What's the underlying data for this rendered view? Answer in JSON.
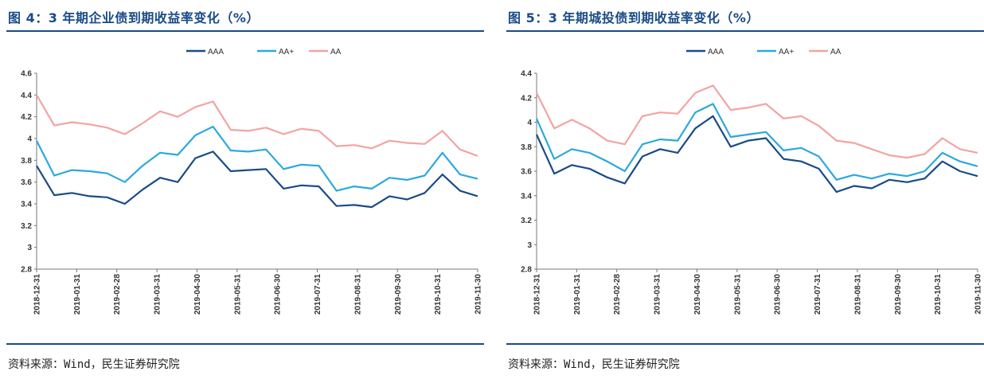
{
  "panels": [
    {
      "title": "图 4：3 年期企业债到期收益率变化（%）",
      "source": "资料来源：Wind，民生证券研究院",
      "chart_data": {
        "type": "line",
        "title": "",
        "xlabel": "",
        "ylabel": "",
        "ylim": [
          2.8,
          4.6
        ],
        "yticks": [
          "4.6",
          "4.4",
          "4.2",
          "4",
          "3.8",
          "3.6",
          "3.4",
          "3.2",
          "3",
          "2.8"
        ],
        "xticks": [
          "2018-12-31",
          "2019-01-31",
          "2019-02-28",
          "2019-03-31",
          "2019-04-30",
          "2019-05-31",
          "2019-06-30",
          "2019-07-31",
          "2019-08-31",
          "2019-09-30",
          "2019-10-31",
          "2019-11-30"
        ],
        "legend_position": "top-center",
        "grid": false,
        "series": [
          {
            "name": "AAA",
            "color": "#1a4b87",
            "values": [
              3.75,
              3.48,
              3.5,
              3.47,
              3.46,
              3.4,
              3.53,
              3.64,
              3.6,
              3.82,
              3.88,
              3.7,
              3.71,
              3.72,
              3.54,
              3.57,
              3.56,
              3.38,
              3.39,
              3.37,
              3.47,
              3.44,
              3.5,
              3.67,
              3.52,
              3.47
            ]
          },
          {
            "name": "AA+",
            "color": "#2aa9df",
            "values": [
              3.98,
              3.66,
              3.71,
              3.7,
              3.68,
              3.6,
              3.75,
              3.87,
              3.85,
              4.03,
              4.11,
              3.89,
              3.88,
              3.9,
              3.72,
              3.76,
              3.75,
              3.52,
              3.56,
              3.54,
              3.64,
              3.62,
              3.66,
              3.87,
              3.67,
              3.63
            ]
          },
          {
            "name": "AA",
            "color": "#f4a3a3",
            "values": [
              4.4,
              4.12,
              4.15,
              4.13,
              4.1,
              4.04,
              4.14,
              4.25,
              4.2,
              4.29,
              4.34,
              4.08,
              4.07,
              4.1,
              4.04,
              4.09,
              4.07,
              3.93,
              3.94,
              3.91,
              3.98,
              3.96,
              3.95,
              4.07,
              3.9,
              3.84
            ]
          }
        ]
      }
    },
    {
      "title": "图 5：3 年期城投债到期收益率变化（%）",
      "source": "资料来源：Wind，民生证券研究院",
      "chart_data": {
        "type": "line",
        "title": "",
        "xlabel": "",
        "ylabel": "",
        "ylim": [
          2.8,
          4.4
        ],
        "yticks": [
          "4.4",
          "4.2",
          "4",
          "3.8",
          "3.6",
          "3.4",
          "3.2",
          "3",
          "2.8"
        ],
        "xticks": [
          "2018-12-31",
          "2019-01-31",
          "2019-02-28",
          "2019-03-31",
          "2019-04-30",
          "2019-05-31",
          "2019-06-30",
          "2019-07-31",
          "2019-08-31",
          "2019-09-30",
          "2019-10-31",
          "2019-11-30"
        ],
        "legend_position": "top-center",
        "grid": false,
        "series": [
          {
            "name": "AAA",
            "color": "#1a4b87",
            "values": [
              3.9,
              3.58,
              3.65,
              3.62,
              3.55,
              3.5,
              3.72,
              3.78,
              3.75,
              3.95,
              4.05,
              3.8,
              3.85,
              3.87,
              3.7,
              3.68,
              3.62,
              3.43,
              3.48,
              3.46,
              3.53,
              3.51,
              3.54,
              3.68,
              3.6,
              3.56
            ]
          },
          {
            "name": "AA+",
            "color": "#2aa9df",
            "values": [
              4.03,
              3.7,
              3.78,
              3.75,
              3.68,
              3.6,
              3.82,
              3.86,
              3.85,
              4.08,
              4.15,
              3.88,
              3.9,
              3.92,
              3.77,
              3.79,
              3.72,
              3.53,
              3.57,
              3.54,
              3.58,
              3.56,
              3.6,
              3.75,
              3.68,
              3.64
            ]
          },
          {
            "name": "AA",
            "color": "#f4a3a3",
            "values": [
              4.24,
              3.95,
              4.02,
              3.95,
              3.85,
              3.82,
              4.05,
              4.08,
              4.07,
              4.24,
              4.3,
              4.1,
              4.12,
              4.15,
              4.03,
              4.05,
              3.97,
              3.85,
              3.83,
              3.78,
              3.73,
              3.71,
              3.74,
              3.87,
              3.78,
              3.75
            ]
          }
        ]
      }
    }
  ]
}
